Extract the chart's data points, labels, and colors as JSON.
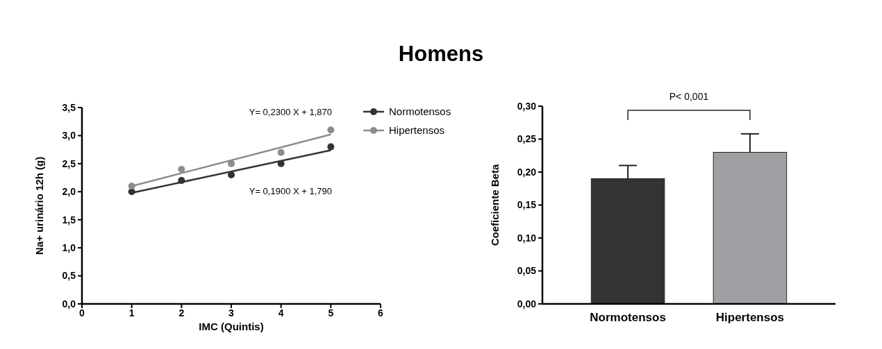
{
  "chart_data": [
    {
      "type": "other",
      "title": "Homens"
    },
    {
      "type": "scatter",
      "xlabel": "IMC (Quintis)",
      "ylabel": "Na+ urinário 12h (g)",
      "xlim": [
        0,
        6
      ],
      "xticks": [
        0,
        1,
        2,
        3,
        4,
        5,
        6
      ],
      "ylim": [
        0,
        3.5
      ],
      "yticks": [
        {
          "value": 0,
          "label": "0,0"
        },
        {
          "value": 0.5,
          "label": "0,5"
        },
        {
          "value": 1,
          "label": "1,0"
        },
        {
          "value": 1.5,
          "label": "1,5"
        },
        {
          "value": 2,
          "label": "2,0"
        },
        {
          "value": 2.5,
          "label": "2,5"
        },
        {
          "value": 3,
          "label": "3,0"
        },
        {
          "value": 3.5,
          "label": "3,5"
        }
      ],
      "legend": "right",
      "annotations": [
        "Y= 0,2300 X + 1,870",
        "Y= 0,1900 X + 1,790"
      ],
      "series": [
        {
          "name": "Normotensos",
          "color": "#333333",
          "marker": "circle",
          "x": [
            1,
            2,
            3,
            4,
            5
          ],
          "values": [
            2.0,
            2.2,
            2.3,
            2.5,
            2.8
          ]
        },
        {
          "name": "Hipertensos",
          "color": "#8c8c8c",
          "marker": "circle",
          "x": [
            1,
            2,
            3,
            4,
            5
          ],
          "values": [
            2.1,
            2.4,
            2.5,
            2.7,
            3.1
          ]
        },
        {
          "type": "line",
          "color": "#333333",
          "marker": "none",
          "x": [
            1,
            5
          ],
          "values": [
            1.98,
            2.74
          ]
        },
        {
          "type": "line",
          "color": "#8c8c8c",
          "marker": "none",
          "x": [
            1,
            5
          ],
          "values": [
            2.1,
            3.02
          ]
        }
      ]
    },
    {
      "type": "bar",
      "ylabel": "Coeficiente Beta",
      "categories": [
        "Normotensos",
        "Hipertensos"
      ],
      "values": [
        0.19,
        0.23
      ],
      "colors": [
        "#333333",
        "#a0a0a4"
      ],
      "errors": [
        [
          0.19,
          0.21
        ],
        [
          0.23,
          0.258
        ]
      ],
      "ylim": [
        0,
        0.3
      ],
      "yticks": [
        {
          "value": 0,
          "label": "0,00"
        },
        {
          "value": 0.05,
          "label": "0,05"
        },
        {
          "value": 0.1,
          "label": "0,10"
        },
        {
          "value": 0.15,
          "label": "0,15"
        },
        {
          "value": 0.2,
          "label": "0,20"
        },
        {
          "value": 0.25,
          "label": "0,25"
        },
        {
          "value": 0.3,
          "label": "0,30"
        }
      ],
      "annotations": [
        "P< 0,001"
      ]
    }
  ]
}
